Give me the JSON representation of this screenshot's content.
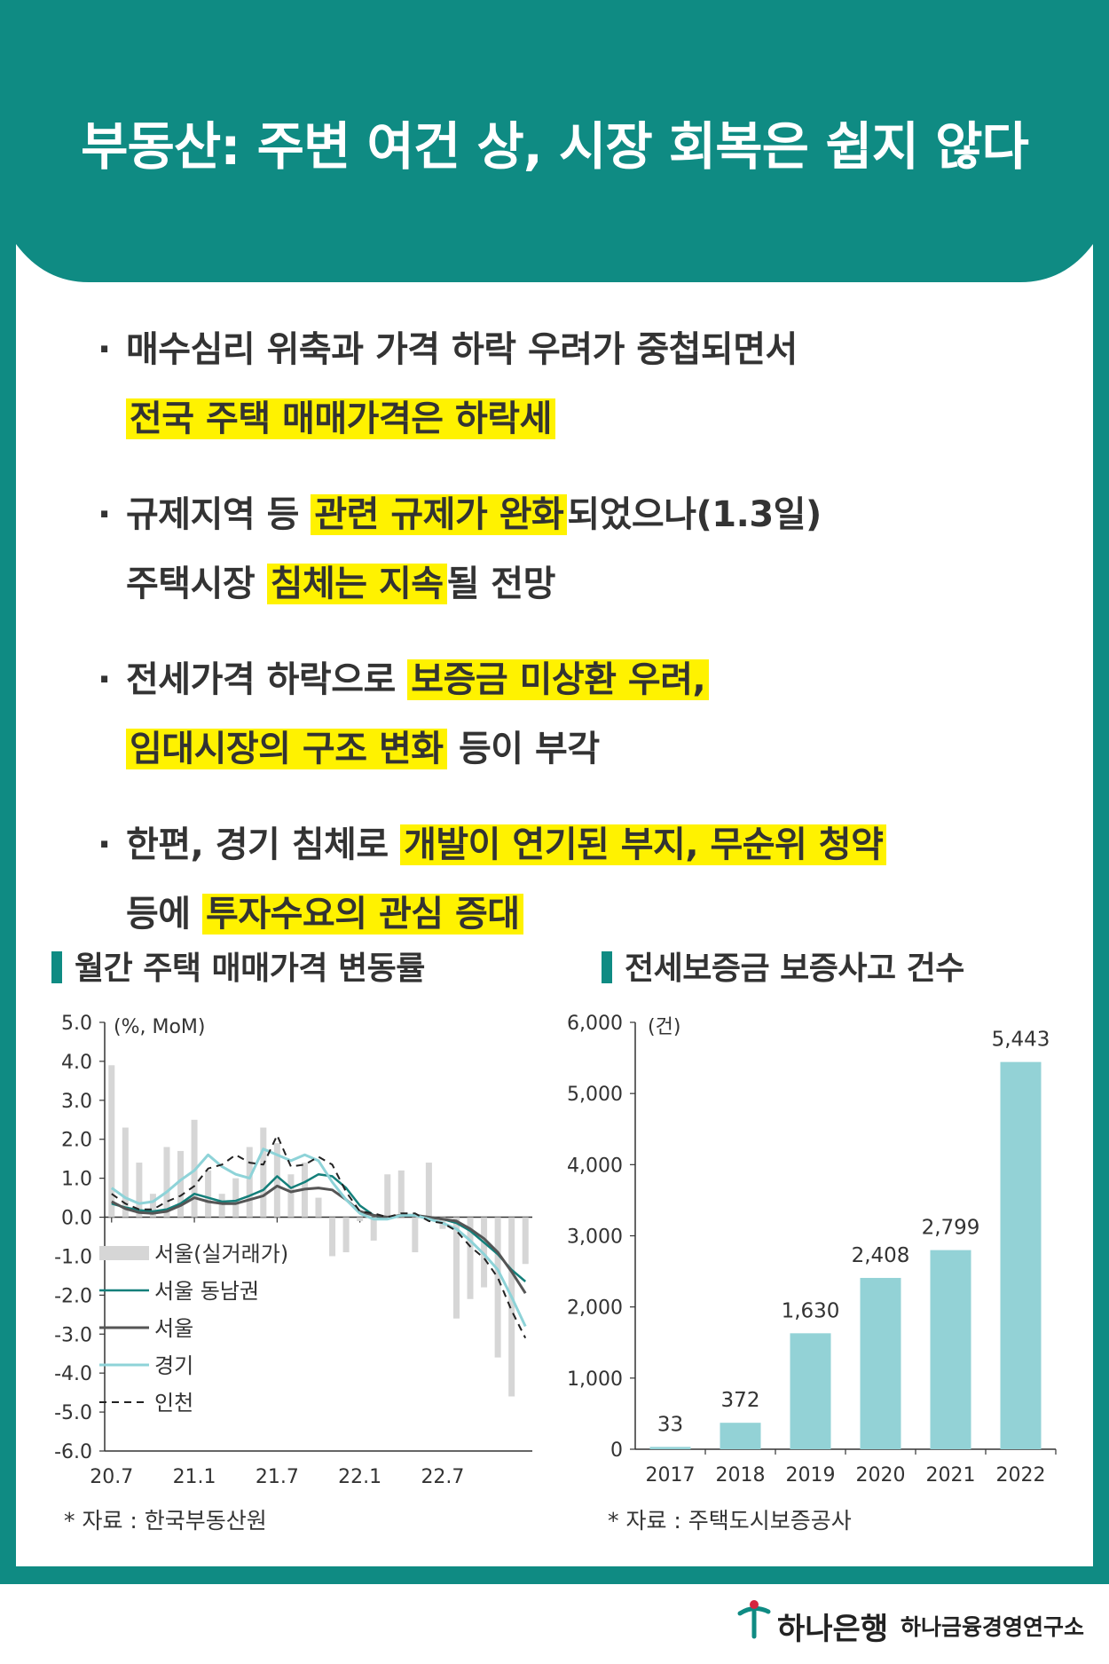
{
  "title": "부동산: 주변 여건 상, 시장 회복은 쉽지 않다",
  "bullets": [
    {
      "line1": [
        {
          "t": "매수심리 위축과 가격 하락 우려가 중첩되면서",
          "h": false
        }
      ],
      "line2": [
        {
          "t": "전국 주택 매매가격은 하락세",
          "h": true
        }
      ]
    },
    {
      "line1": [
        {
          "t": "규제지역 등 ",
          "h": false
        },
        {
          "t": "관련 규제가 완화",
          "h": true
        },
        {
          "t": "되었으나(1.3일)",
          "h": false
        }
      ],
      "line2": [
        {
          "t": "주택시장 ",
          "h": false
        },
        {
          "t": "침체는 지속",
          "h": true
        },
        {
          "t": "될 전망",
          "h": false
        }
      ]
    },
    {
      "line1": [
        {
          "t": "전세가격 하락으로 ",
          "h": false
        },
        {
          "t": "보증금 미상환 우려,",
          "h": true
        }
      ],
      "line2": [
        {
          "t": "임대시장의 구조 변화",
          "h": true
        },
        {
          "t": " 등이 부각",
          "h": false
        }
      ]
    },
    {
      "line1": [
        {
          "t": "한편, 경기 침체로 ",
          "h": false
        },
        {
          "t": "개발이 연기된 부지, 무순위 청약",
          "h": true
        }
      ],
      "line2": [
        {
          "t": "등에 ",
          "h": false
        },
        {
          "t": "투자수요의 관심 증대",
          "h": true
        }
      ]
    }
  ],
  "chart1_title": "월간 주택 매매가격 변동률",
  "chart2_title": "전세보증금 보증사고 건수",
  "source1": "* 자료 : 한국부동산원",
  "source2": "* 자료 : 주택도시보증공사",
  "footer": {
    "bank": "하나은행",
    "institute": "하나금융경영연구소"
  },
  "colors": {
    "teal": "#0f8b83",
    "highlight": "#fff200",
    "bar_gray": "#d6d6d6",
    "seoul_se": "#137f7a",
    "seoul": "#555555",
    "gyeonggi": "#8ed3d8",
    "incheon": "#222222",
    "jeonse_bar": "#93d2d6"
  },
  "chart_data": [
    {
      "type": "line",
      "unit": "(%, MoM)",
      "ylim": [
        -6.0,
        5.0
      ],
      "yticks": [
        "5.0",
        "4.0",
        "3.0",
        "2.0",
        "1.0",
        "0.0",
        "-1.0",
        "-2.0",
        "-3.0",
        "-4.0",
        "-5.0",
        "-6.0"
      ],
      "xticks": [
        "20.7",
        "21.1",
        "21.7",
        "22.1",
        "22.7"
      ],
      "x": [
        "20.7",
        "20.8",
        "20.9",
        "20.10",
        "20.11",
        "20.12",
        "21.1",
        "21.2",
        "21.3",
        "21.4",
        "21.5",
        "21.6",
        "21.7",
        "21.8",
        "21.9",
        "21.10",
        "21.11",
        "21.12",
        "22.1",
        "22.2",
        "22.3",
        "22.4",
        "22.5",
        "22.6",
        "22.7",
        "22.8",
        "22.9",
        "22.10",
        "22.11",
        "22.12",
        "23.1"
      ],
      "legend": [
        "서울(실거래가)",
        "서울 동남권",
        "서울",
        "경기",
        "인천"
      ],
      "series": [
        {
          "name": "서울(실거래가)",
          "kind": "bar",
          "values": [
            3.9,
            2.3,
            1.4,
            0.6,
            1.8,
            1.7,
            2.5,
            1.2,
            0.6,
            1.0,
            1.8,
            2.3,
            1.9,
            1.1,
            1.4,
            0.5,
            -1.0,
            -0.9,
            -0.1,
            -0.6,
            1.1,
            1.2,
            -0.9,
            1.4,
            -0.3,
            -2.6,
            -2.1,
            -1.8,
            -3.6,
            -4.6,
            -1.2
          ]
        },
        {
          "name": "서울 동남권",
          "kind": "line",
          "values": [
            0.35,
            0.25,
            0.18,
            0.15,
            0.2,
            0.35,
            0.6,
            0.5,
            0.4,
            0.42,
            0.55,
            0.7,
            1.05,
            0.75,
            0.9,
            1.1,
            1.05,
            0.75,
            0.3,
            0.05,
            -0.05,
            0.05,
            0.05,
            0.0,
            -0.05,
            -0.15,
            -0.35,
            -0.65,
            -0.95,
            -1.35,
            -1.65
          ]
        },
        {
          "name": "서울",
          "kind": "line",
          "values": [
            0.4,
            0.22,
            0.12,
            0.1,
            0.15,
            0.3,
            0.5,
            0.4,
            0.35,
            0.35,
            0.45,
            0.55,
            0.8,
            0.65,
            0.72,
            0.75,
            0.7,
            0.45,
            0.15,
            0.05,
            0.0,
            0.05,
            0.05,
            0.0,
            -0.05,
            -0.1,
            -0.3,
            -0.55,
            -0.9,
            -1.4,
            -1.95
          ]
        },
        {
          "name": "경기",
          "kind": "line",
          "values": [
            0.75,
            0.5,
            0.35,
            0.4,
            0.65,
            0.95,
            1.2,
            1.6,
            1.3,
            1.1,
            1.0,
            1.75,
            1.6,
            1.45,
            1.6,
            1.45,
            0.9,
            0.45,
            0.1,
            -0.05,
            -0.05,
            0.05,
            0.05,
            -0.05,
            -0.15,
            -0.3,
            -0.6,
            -0.95,
            -1.35,
            -2.05,
            -2.8
          ]
        },
        {
          "name": "인천",
          "kind": "dashed",
          "values": [
            0.6,
            0.35,
            0.2,
            0.2,
            0.4,
            0.55,
            0.8,
            1.25,
            1.35,
            1.6,
            1.4,
            1.35,
            2.1,
            1.3,
            1.35,
            1.55,
            1.35,
            0.65,
            0.15,
            0.1,
            0.0,
            0.1,
            0.1,
            -0.1,
            -0.15,
            -0.35,
            -0.75,
            -1.05,
            -1.55,
            -2.4,
            -3.1
          ]
        }
      ]
    },
    {
      "type": "bar",
      "unit": "(건)",
      "ylim": [
        0,
        6000
      ],
      "yticks": [
        "6,000",
        "5,000",
        "4,000",
        "3,000",
        "2,000",
        "1,000",
        "0"
      ],
      "categories": [
        "2017",
        "2018",
        "2019",
        "2020",
        "2021",
        "2022"
      ],
      "values": [
        33,
        372,
        1630,
        2408,
        2799,
        5443
      ],
      "labels": [
        "33",
        "372",
        "1,630",
        "2,408",
        "2,799",
        "5,443"
      ]
    }
  ]
}
